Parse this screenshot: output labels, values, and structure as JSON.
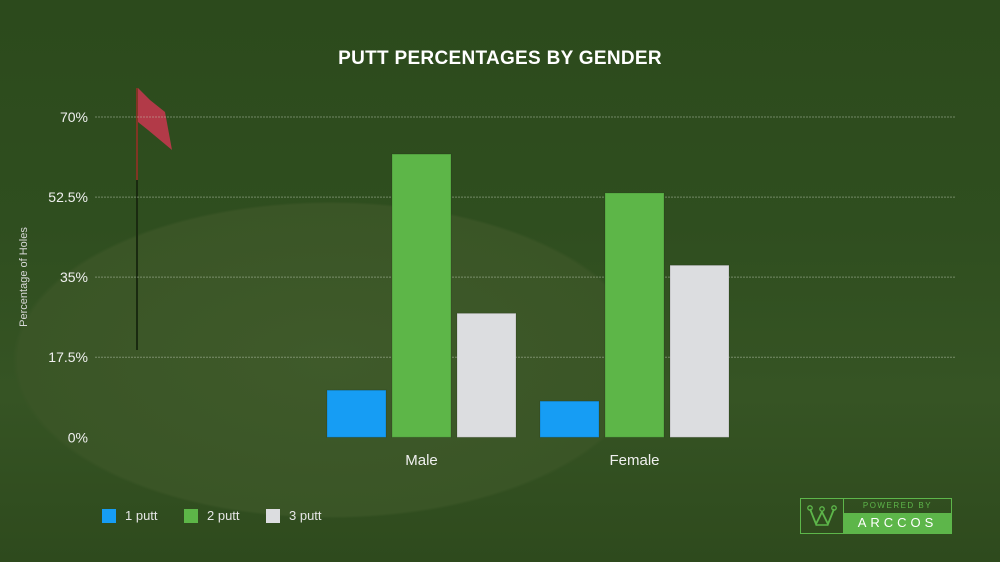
{
  "chart_data": {
    "type": "bar",
    "title": "PUTT PERCENTAGES BY GENDER",
    "xlabel": "",
    "ylabel": "Percentage of Holes",
    "ylim": [
      0,
      70
    ],
    "yticks": [
      "0%",
      "17.5%",
      "35%",
      "52.5%",
      "70%"
    ],
    "ytick_values": [
      0,
      17.5,
      35,
      52.5,
      70
    ],
    "grid": true,
    "legend_position": "bottom-left",
    "categories": [
      "Male",
      "Female"
    ],
    "series": [
      {
        "name": "1 putt",
        "values": [
          10.3,
          7.9
        ],
        "color": "#169df4"
      },
      {
        "name": "2 putt",
        "values": [
          61.9,
          53.4
        ],
        "color": "#5db648"
      },
      {
        "name": "3 putt",
        "values": [
          27.1,
          37.6
        ],
        "color": "#dcdde0"
      }
    ]
  },
  "logo": {
    "top": "POWERED BY",
    "brand": "ARCCOS"
  }
}
